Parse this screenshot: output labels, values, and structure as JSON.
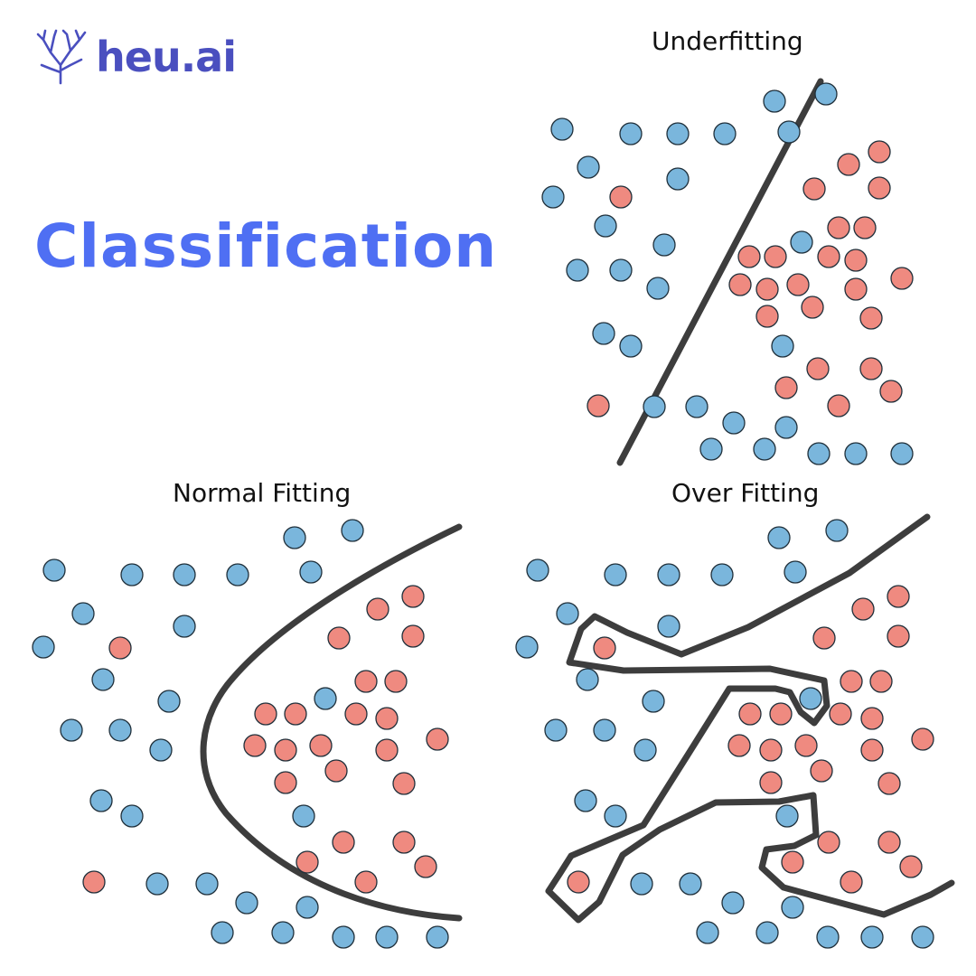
{
  "brand": {
    "name": "heu.ai",
    "logo_icon": "coral-icon"
  },
  "heading": "Classification",
  "colors": {
    "heading": "#4f6ff3",
    "brand": "#4a4fbf",
    "class_a": "#7ab6dc",
    "class_b": "#ef8a80",
    "boundary": "#3d3d3d"
  },
  "panels": [
    {
      "id": "underfitting",
      "title": "Underfitting"
    },
    {
      "id": "normal",
      "title": "Normal Fitting"
    },
    {
      "id": "over",
      "title": "Over Fitting"
    }
  ]
}
